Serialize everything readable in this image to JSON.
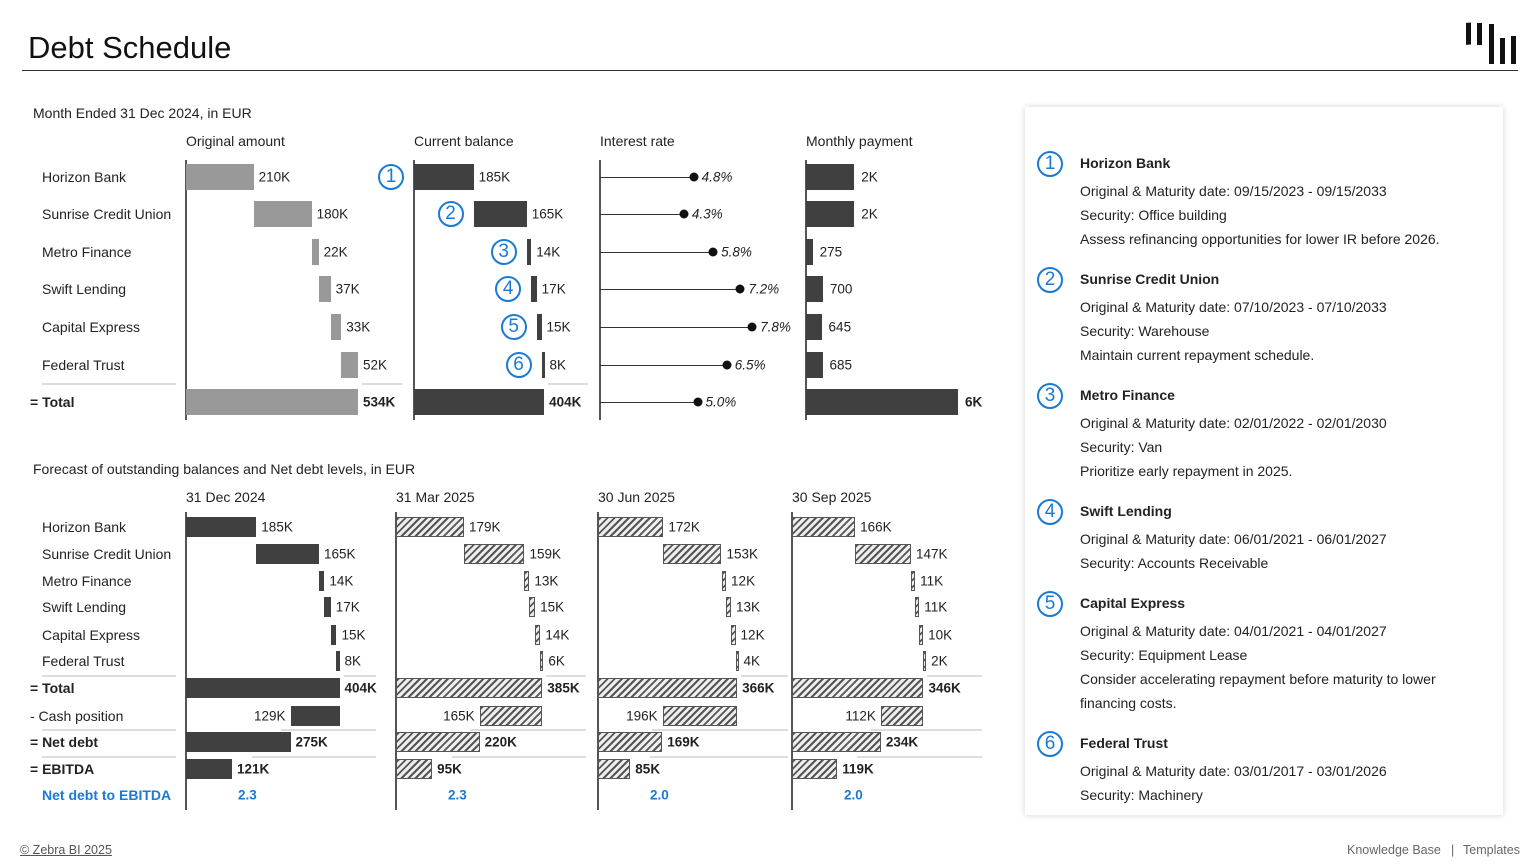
{
  "header": {
    "title": "Debt Schedule",
    "logo": "zebra-bi-bars-logo"
  },
  "top": {
    "subtitle": "Month Ended 31 Dec 2024, in EUR",
    "columns": [
      "Original amount",
      "Current balance",
      "Interest rate",
      "Monthly payment"
    ],
    "rows": [
      "Horizon Bank",
      "Sunrise Credit Union",
      "Metro Finance",
      "Swift Lending",
      "Capital Express",
      "Federal Trust"
    ],
    "total_label": "= Total",
    "original_amount": {
      "values": [
        210,
        180,
        22,
        37,
        33,
        52
      ],
      "labels": [
        "210K",
        "180K",
        "22K",
        "37K",
        "33K",
        "52K"
      ],
      "total": 534,
      "total_label": "534K"
    },
    "current_balance": {
      "values": [
        185,
        165,
        14,
        17,
        15,
        8
      ],
      "labels": [
        "185K",
        "165K",
        "14K",
        "17K",
        "15K",
        "8K"
      ],
      "total": 404,
      "total_label": "404K",
      "markers": [
        "1",
        "2",
        "3",
        "4",
        "5",
        "6"
      ]
    },
    "interest_rate": {
      "values": [
        4.8,
        4.3,
        5.8,
        7.2,
        7.8,
        6.5
      ],
      "labels": [
        "4.8%",
        "4.3%",
        "5.8%",
        "7.2%",
        "7.8%",
        "6.5%"
      ],
      "total": 5.0,
      "total_label": "5.0%"
    },
    "monthly_payment": {
      "values": [
        2000,
        2000,
        275,
        700,
        645,
        685
      ],
      "labels": [
        "2K",
        "2K",
        "275",
        "700",
        "645",
        "685"
      ],
      "total": 6305,
      "total_label": "6K"
    }
  },
  "bottom": {
    "subtitle": "Forecast of outstanding balances and Net debt levels, in EUR",
    "rows": [
      "Horizon Bank",
      "Sunrise Credit Union",
      "Metro Finance",
      "Swift Lending",
      "Capital Express",
      "Federal Trust"
    ],
    "total_label": "= Total",
    "cash_label": "- Cash position",
    "net_label": "= Net debt",
    "ebitda_label": "= EBITDA",
    "ratio_label": "Net debt to EBITDA",
    "periods": [
      {
        "label": "31 Dec 2024",
        "forecast": false,
        "values": [
          185,
          165,
          14,
          17,
          15,
          8
        ],
        "labels": [
          "185K",
          "165K",
          "14K",
          "17K",
          "15K",
          "8K"
        ],
        "total": 404,
        "total_label": "404K",
        "cash": 129,
        "cash_label": "129K",
        "net": 275,
        "net_label": "275K",
        "ebitda": 121,
        "ebitda_label": "121K",
        "ratio": "2.3"
      },
      {
        "label": "31 Mar 2025",
        "forecast": true,
        "values": [
          179,
          159,
          13,
          15,
          14,
          6
        ],
        "labels": [
          "179K",
          "159K",
          "13K",
          "15K",
          "14K",
          "6K"
        ],
        "total": 385,
        "total_label": "385K",
        "cash": 165,
        "cash_label": "165K",
        "net": 220,
        "net_label": "220K",
        "ebitda": 95,
        "ebitda_label": "95K",
        "ratio": "2.3"
      },
      {
        "label": "30 Jun 2025",
        "forecast": true,
        "values": [
          172,
          153,
          12,
          13,
          12,
          4
        ],
        "labels": [
          "172K",
          "153K",
          "12K",
          "13K",
          "12K",
          "4K"
        ],
        "total": 366,
        "total_label": "366K",
        "cash": 196,
        "cash_label": "196K",
        "net": 169,
        "net_label": "169K",
        "ebitda": 85,
        "ebitda_label": "85K",
        "ratio": "2.0"
      },
      {
        "label": "30 Sep 2025",
        "forecast": true,
        "values": [
          166,
          147,
          11,
          11,
          10,
          2
        ],
        "labels": [
          "166K",
          "147K",
          "11K",
          "11K",
          "10K",
          "2K"
        ],
        "total": 346,
        "total_label": "346K",
        "cash": 112,
        "cash_label": "112K",
        "net": 234,
        "net_label": "234K",
        "ebitda": 119,
        "ebitda_label": "119K",
        "ratio": "2.0"
      }
    ]
  },
  "panel": {
    "items": [
      {
        "num": "1",
        "title": "Horizon Bank",
        "lines": [
          "Original & Maturity date: 09/15/2023 - 09/15/2033",
          "Security: Office building",
          "Assess refinancing opportunities for lower IR before 2026."
        ]
      },
      {
        "num": "2",
        "title": "Sunrise Credit Union",
        "lines": [
          "Original & Maturity date: 07/10/2023 - 07/10/2033",
          "Security: Warehouse",
          "Maintain current repayment schedule."
        ]
      },
      {
        "num": "3",
        "title": "Metro Finance",
        "lines": [
          "Original & Maturity date: 02/01/2022 - 02/01/2030",
          "Security: Van",
          "Prioritize early repayment in 2025."
        ]
      },
      {
        "num": "4",
        "title": "Swift Lending",
        "lines": [
          "Original & Maturity date: 06/01/2021 - 06/01/2027",
          "Security: Accounts Receivable"
        ]
      },
      {
        "num": "5",
        "title": "Capital Express",
        "lines": [
          "Original & Maturity date: 04/01/2021 - 04/01/2027",
          "Security: Equipment Lease",
          "Consider accelerating repayment before maturity to lower",
          "financing costs."
        ]
      },
      {
        "num": "6",
        "title": "Federal Trust",
        "lines": [
          "Original & Maturity date: 03/01/2017 - 03/01/2026",
          "Security: Machinery"
        ]
      }
    ]
  },
  "footer": {
    "copyright": "© Zebra BI 2025",
    "knowledge_base": "Knowledge Base",
    "separator": "|",
    "templates": "Templates"
  },
  "colors": {
    "accent": "#1a7ad4",
    "actual_bar": "#404040",
    "original_bar": "#999999",
    "forecast": "hatched"
  }
}
